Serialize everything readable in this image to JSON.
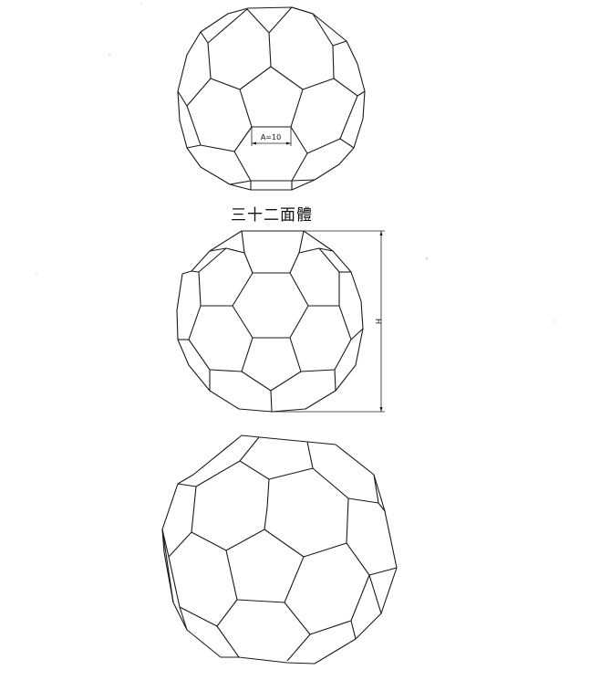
{
  "title": "三十二面體",
  "dimensions": {
    "edge_label": "A=10",
    "height_label": "H"
  }
}
